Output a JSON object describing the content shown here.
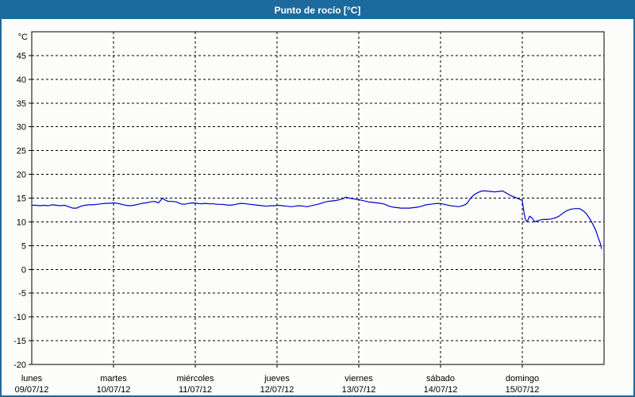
{
  "window": {
    "title": "Punto de rocío [°C]"
  },
  "colors": {
    "title_bar_bg": "#1d6a9d",
    "frame_border": "#1d6a9d",
    "title_text": "#ffffff",
    "line": "#0000cc",
    "grid": "#000000",
    "page_bg": "#fcfdfa"
  },
  "chart_data": {
    "type": "line",
    "title": "Punto de rocío [°C]",
    "y_unit_label": "°C",
    "ylim": [
      -20,
      50
    ],
    "y_ticks": [
      45,
      40,
      35,
      30,
      25,
      20,
      15,
      10,
      5,
      0,
      -5,
      -10,
      -15,
      -20
    ],
    "xlim_days": [
      0,
      7
    ],
    "x_days": [
      {
        "name": "lunes",
        "date": "09/07/12"
      },
      {
        "name": "martes",
        "date": "10/07/12"
      },
      {
        "name": "miércoles",
        "date": "11/07/12"
      },
      {
        "name": "jueves",
        "date": "12/07/12"
      },
      {
        "name": "viernes",
        "date": "13/07/12"
      },
      {
        "name": "sábado",
        "date": "14/07/12"
      },
      {
        "name": "domingo",
        "date": "15/07/12"
      }
    ],
    "grid": "dashed",
    "legend": "none",
    "series": [
      {
        "name": "Punto de rocío",
        "color": "#0000cc",
        "points": [
          [
            0.0,
            13.5
          ],
          [
            0.05,
            13.5
          ],
          [
            0.1,
            13.4
          ],
          [
            0.15,
            13.5
          ],
          [
            0.2,
            13.4
          ],
          [
            0.25,
            13.6
          ],
          [
            0.3,
            13.5
          ],
          [
            0.35,
            13.4
          ],
          [
            0.4,
            13.5
          ],
          [
            0.45,
            13.2
          ],
          [
            0.5,
            12.9
          ],
          [
            0.55,
            12.9
          ],
          [
            0.6,
            13.3
          ],
          [
            0.65,
            13.5
          ],
          [
            0.7,
            13.6
          ],
          [
            0.75,
            13.6
          ],
          [
            0.8,
            13.7
          ],
          [
            0.85,
            13.8
          ],
          [
            0.9,
            13.9
          ],
          [
            0.95,
            13.9
          ],
          [
            1.0,
            14.0
          ],
          [
            1.05,
            13.9
          ],
          [
            1.1,
            13.7
          ],
          [
            1.15,
            13.5
          ],
          [
            1.2,
            13.4
          ],
          [
            1.25,
            13.5
          ],
          [
            1.3,
            13.7
          ],
          [
            1.35,
            13.9
          ],
          [
            1.4,
            14.0
          ],
          [
            1.45,
            14.2
          ],
          [
            1.5,
            14.3
          ],
          [
            1.55,
            14.0
          ],
          [
            1.6,
            15.0
          ],
          [
            1.63,
            14.6
          ],
          [
            1.67,
            14.3
          ],
          [
            1.72,
            14.3
          ],
          [
            1.77,
            14.2
          ],
          [
            1.82,
            13.8
          ],
          [
            1.87,
            13.7
          ],
          [
            1.92,
            13.9
          ],
          [
            1.97,
            14.0
          ],
          [
            2.02,
            13.9
          ],
          [
            2.07,
            13.8
          ],
          [
            2.12,
            13.9
          ],
          [
            2.17,
            13.8
          ],
          [
            2.22,
            13.8
          ],
          [
            2.27,
            13.7
          ],
          [
            2.32,
            13.7
          ],
          [
            2.37,
            13.6
          ],
          [
            2.42,
            13.5
          ],
          [
            2.47,
            13.6
          ],
          [
            2.52,
            13.8
          ],
          [
            2.57,
            13.9
          ],
          [
            2.62,
            13.8
          ],
          [
            2.67,
            13.7
          ],
          [
            2.72,
            13.6
          ],
          [
            2.77,
            13.5
          ],
          [
            2.82,
            13.4
          ],
          [
            2.87,
            13.3
          ],
          [
            2.92,
            13.4
          ],
          [
            2.97,
            13.4
          ],
          [
            3.02,
            13.5
          ],
          [
            3.07,
            13.4
          ],
          [
            3.12,
            13.3
          ],
          [
            3.17,
            13.2
          ],
          [
            3.22,
            13.3
          ],
          [
            3.27,
            13.4
          ],
          [
            3.32,
            13.3
          ],
          [
            3.37,
            13.2
          ],
          [
            3.42,
            13.4
          ],
          [
            3.47,
            13.6
          ],
          [
            3.52,
            13.8
          ],
          [
            3.57,
            14.1
          ],
          [
            3.62,
            14.3
          ],
          [
            3.67,
            14.4
          ],
          [
            3.72,
            14.5
          ],
          [
            3.77,
            14.7
          ],
          [
            3.81,
            14.9
          ],
          [
            3.84,
            15.2
          ],
          [
            3.88,
            15.0
          ],
          [
            3.92,
            14.9
          ],
          [
            3.97,
            14.7
          ],
          [
            4.02,
            14.6
          ],
          [
            4.07,
            14.4
          ],
          [
            4.12,
            14.2
          ],
          [
            4.17,
            14.1
          ],
          [
            4.22,
            14.0
          ],
          [
            4.27,
            13.9
          ],
          [
            4.32,
            13.7
          ],
          [
            4.37,
            13.3
          ],
          [
            4.42,
            13.1
          ],
          [
            4.47,
            13.0
          ],
          [
            4.52,
            12.9
          ],
          [
            4.57,
            12.9
          ],
          [
            4.62,
            12.9
          ],
          [
            4.67,
            13.0
          ],
          [
            4.72,
            13.1
          ],
          [
            4.77,
            13.3
          ],
          [
            4.82,
            13.6
          ],
          [
            4.87,
            13.7
          ],
          [
            4.92,
            13.8
          ],
          [
            4.97,
            13.9
          ],
          [
            5.02,
            13.8
          ],
          [
            5.07,
            13.6
          ],
          [
            5.12,
            13.4
          ],
          [
            5.17,
            13.3
          ],
          [
            5.22,
            13.2
          ],
          [
            5.27,
            13.4
          ],
          [
            5.32,
            13.8
          ],
          [
            5.36,
            14.8
          ],
          [
            5.41,
            15.7
          ],
          [
            5.46,
            16.2
          ],
          [
            5.51,
            16.5
          ],
          [
            5.56,
            16.5
          ],
          [
            5.61,
            16.4
          ],
          [
            5.66,
            16.3
          ],
          [
            5.71,
            16.4
          ],
          [
            5.76,
            16.5
          ],
          [
            5.81,
            16.0
          ],
          [
            5.86,
            15.5
          ],
          [
            5.91,
            15.2
          ],
          [
            5.96,
            14.8
          ],
          [
            6.0,
            14.5
          ],
          [
            6.02,
            12.0
          ],
          [
            6.04,
            10.4
          ],
          [
            6.06,
            10.0
          ],
          [
            6.09,
            11.2
          ],
          [
            6.12,
            10.8
          ],
          [
            6.15,
            10.0
          ],
          [
            6.2,
            10.3
          ],
          [
            6.25,
            10.5
          ],
          [
            6.3,
            10.5
          ],
          [
            6.35,
            10.6
          ],
          [
            6.4,
            10.8
          ],
          [
            6.45,
            11.2
          ],
          [
            6.5,
            11.9
          ],
          [
            6.55,
            12.4
          ],
          [
            6.6,
            12.7
          ],
          [
            6.65,
            12.8
          ],
          [
            6.7,
            12.8
          ],
          [
            6.74,
            12.4
          ],
          [
            6.78,
            11.8
          ],
          [
            6.82,
            10.8
          ],
          [
            6.86,
            9.6
          ],
          [
            6.9,
            8.2
          ],
          [
            6.93,
            6.6
          ],
          [
            6.96,
            5.2
          ],
          [
            6.97,
            4.3
          ]
        ]
      }
    ]
  }
}
